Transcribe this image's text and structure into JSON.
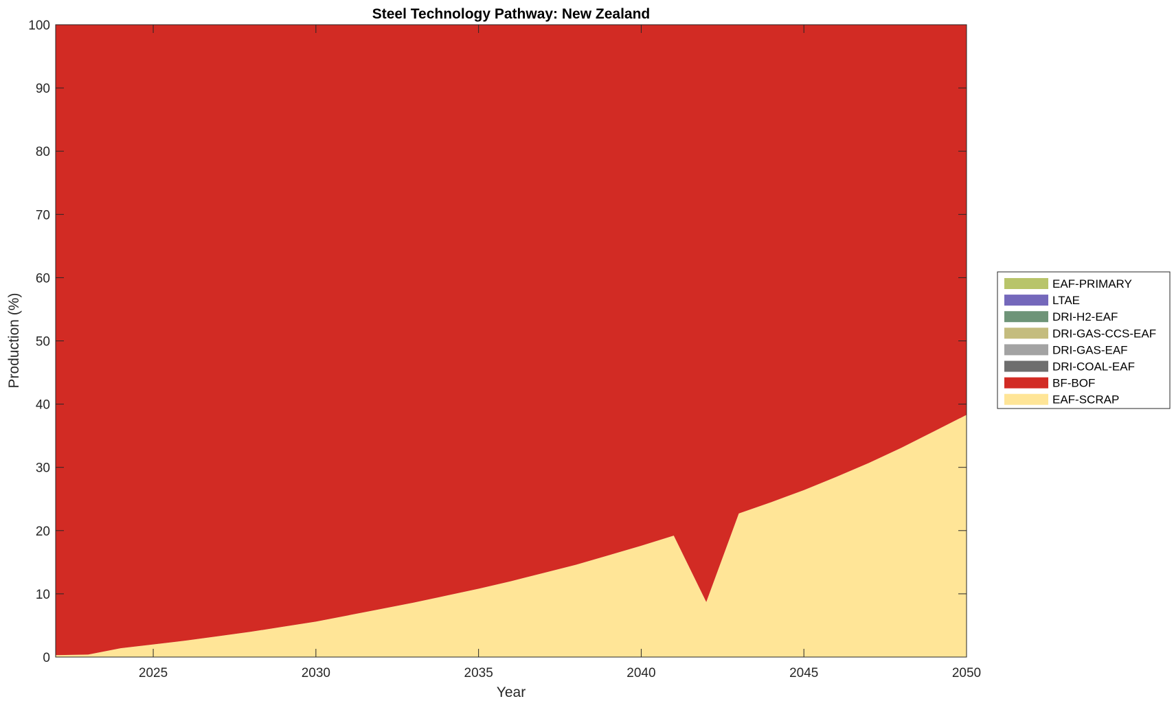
{
  "chart_data": {
    "type": "area",
    "stacked": true,
    "title": "Steel Technology Pathway: New Zealand",
    "xlabel": "Year",
    "ylabel": "Production (%)",
    "xlim": [
      2022,
      2050
    ],
    "ylim": [
      0,
      100
    ],
    "xticks": [
      2025,
      2030,
      2035,
      2040,
      2045,
      2050
    ],
    "yticks": [
      0,
      10,
      20,
      30,
      40,
      50,
      60,
      70,
      80,
      90,
      100
    ],
    "grid": false,
    "legend_position": "right",
    "x": [
      2022,
      2023,
      2024,
      2025,
      2026,
      2027,
      2028,
      2029,
      2030,
      2031,
      2032,
      2033,
      2034,
      2035,
      2036,
      2037,
      2038,
      2039,
      2040,
      2041,
      2042,
      2043,
      2044,
      2045,
      2046,
      2047,
      2048,
      2049,
      2050
    ],
    "series": [
      {
        "name": "EAF-SCRAP",
        "color": "#FFE597",
        "values": [
          0.3,
          0.4,
          1.4,
          2.0,
          2.6,
          3.3,
          4.0,
          4.8,
          5.6,
          6.6,
          7.6,
          8.6,
          9.7,
          10.8,
          12.0,
          13.3,
          14.6,
          16.1,
          17.6,
          19.2,
          8.7,
          22.7,
          24.5,
          26.4,
          28.5,
          30.7,
          33.1,
          35.7,
          38.3
        ]
      },
      {
        "name": "BF-BOF",
        "color": "#D22B24",
        "values": [
          99.7,
          99.6,
          98.6,
          98.0,
          97.4,
          96.7,
          96.0,
          95.2,
          94.4,
          93.4,
          92.4,
          91.4,
          90.3,
          89.2,
          88.0,
          86.7,
          85.4,
          83.9,
          82.4,
          80.8,
          91.3,
          77.3,
          75.5,
          73.6,
          71.5,
          69.3,
          66.9,
          64.3,
          61.7
        ]
      },
      {
        "name": "DRI-COAL-EAF",
        "color": "#6E6E6E",
        "values": [
          0,
          0,
          0,
          0,
          0,
          0,
          0,
          0,
          0,
          0,
          0,
          0,
          0,
          0,
          0,
          0,
          0,
          0,
          0,
          0,
          0,
          0,
          0,
          0,
          0,
          0,
          0,
          0,
          0
        ]
      },
      {
        "name": "DRI-GAS-EAF",
        "color": "#A3A3A3",
        "values": [
          0,
          0,
          0,
          0,
          0,
          0,
          0,
          0,
          0,
          0,
          0,
          0,
          0,
          0,
          0,
          0,
          0,
          0,
          0,
          0,
          0,
          0,
          0,
          0,
          0,
          0,
          0,
          0,
          0
        ]
      },
      {
        "name": "DRI-GAS-CCS-EAF",
        "color": "#C4BC7E",
        "values": [
          0,
          0,
          0,
          0,
          0,
          0,
          0,
          0,
          0,
          0,
          0,
          0,
          0,
          0,
          0,
          0,
          0,
          0,
          0,
          0,
          0,
          0,
          0,
          0,
          0,
          0,
          0,
          0,
          0
        ]
      },
      {
        "name": "DRI-H2-EAF",
        "color": "#6E9478",
        "values": [
          0,
          0,
          0,
          0,
          0,
          0,
          0,
          0,
          0,
          0,
          0,
          0,
          0,
          0,
          0,
          0,
          0,
          0,
          0,
          0,
          0,
          0,
          0,
          0,
          0,
          0,
          0,
          0,
          0
        ]
      },
      {
        "name": "LTAE",
        "color": "#7468BB",
        "values": [
          0,
          0,
          0,
          0,
          0,
          0,
          0,
          0,
          0,
          0,
          0,
          0,
          0,
          0,
          0,
          0,
          0,
          0,
          0,
          0,
          0,
          0,
          0,
          0,
          0,
          0,
          0,
          0,
          0
        ]
      },
      {
        "name": "EAF-PRIMARY",
        "color": "#B8C46A",
        "values": [
          0,
          0,
          0,
          0,
          0,
          0,
          0,
          0,
          0,
          0,
          0,
          0,
          0,
          0,
          0,
          0,
          0,
          0,
          0,
          0,
          0,
          0,
          0,
          0,
          0,
          0,
          0,
          0,
          0
        ]
      }
    ],
    "legend_order": [
      "EAF-PRIMARY",
      "LTAE",
      "DRI-H2-EAF",
      "DRI-GAS-CCS-EAF",
      "DRI-GAS-EAF",
      "DRI-COAL-EAF",
      "BF-BOF",
      "EAF-SCRAP"
    ]
  }
}
